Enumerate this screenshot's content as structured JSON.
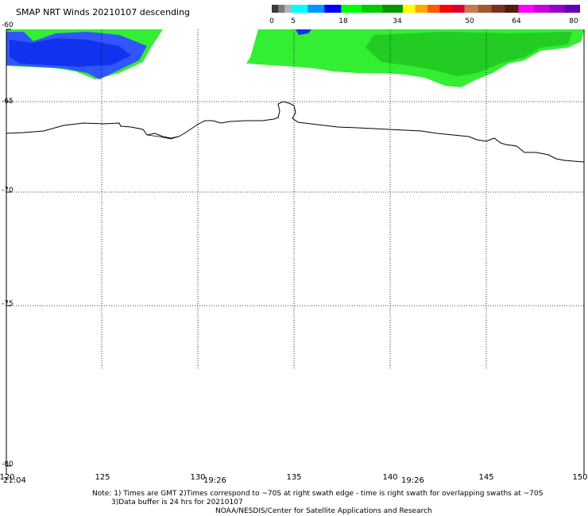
{
  "title": "SMAP NRT Winds  20210107 descending",
  "colorbar": {
    "labels": [
      "0",
      "5",
      "18",
      "34",
      "50",
      "64",
      "80"
    ],
    "segments": [
      {
        "from": 0,
        "to": 5,
        "colors": [
          "#3c3c3c",
          "#7a7a7a",
          "#b4b4b4"
        ]
      },
      {
        "from": 5,
        "to": 18,
        "colors": [
          "#00ffff",
          "#0096ff",
          "#0000ff"
        ]
      },
      {
        "from": 18,
        "to": 34,
        "colors": [
          "#00ff00",
          "#00cc00",
          "#009600"
        ]
      },
      {
        "from": 34,
        "to": 50,
        "colors": [
          "#ffff00",
          "#ffaa00",
          "#ff5a00",
          "#ff0000",
          "#dc0032"
        ]
      },
      {
        "from": 50,
        "to": 64,
        "colors": [
          "#c87850",
          "#a05a32",
          "#78321e",
          "#501e0a"
        ]
      },
      {
        "from": 64,
        "to": 80,
        "colors": [
          "#ff00ff",
          "#c800dc",
          "#9600c8",
          "#6400b4"
        ]
      }
    ]
  },
  "map": {
    "lon_range": [
      120,
      150
    ],
    "lat_range": [
      -60,
      -80
    ],
    "lat_labels": [
      "-60",
      "-65",
      "-70",
      "-75",
      "-80"
    ],
    "lon_labels": [
      "120",
      "125",
      "130",
      "135",
      "140",
      "145",
      "150"
    ],
    "times": [
      "21:04",
      "19:26",
      "19:26"
    ],
    "wind_colors": {
      "light": "#33ee33",
      "mid": "#22cc22",
      "dark": "#119911",
      "blue": "#1133ee",
      "blue_light": "#3355ff"
    }
  },
  "notes": {
    "line1": "Note: 1) Times are GMT 2)Times correspond to ~70S at right swath edge - time is right swath for overlapping swaths at ~70S",
    "line2": "3)Data buffer is 24 hrs for 20210107",
    "line3": "NOAA/NESDIS/Center for Satellite Applications and Research"
  }
}
